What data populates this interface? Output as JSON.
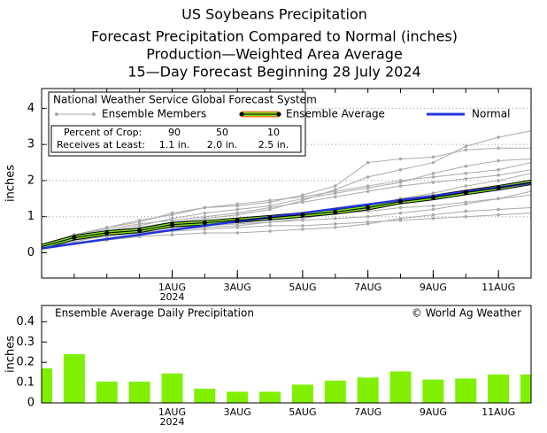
{
  "titles": [
    "US Soybeans Precipitation",
    "Forecast Precipitation Compared to Normal (inches)",
    "Production—Weighted Area Average",
    "15—Day Forecast Beginning 28 July 2024"
  ],
  "chart_data": [
    {
      "type": "line",
      "legend_title": "National Weather Service Global Forecast System",
      "ylabel": "inches",
      "x": [
        0,
        1,
        2,
        3,
        4,
        5,
        6,
        7,
        8,
        9,
        10,
        11,
        12,
        13,
        14,
        15
      ],
      "xlim": [
        0,
        15
      ],
      "xticks": [
        {
          "value": 4,
          "label": "1AUG"
        },
        {
          "value": 6,
          "label": "3AUG"
        },
        {
          "value": 8,
          "label": "5AUG"
        },
        {
          "value": 10,
          "label": "7AUG"
        },
        {
          "value": 12,
          "label": "9AUG"
        },
        {
          "value": 14,
          "label": "11AUG"
        }
      ],
      "xtick_year": "2024",
      "ylim": [
        -0.7,
        4.55
      ],
      "yticks": [
        0,
        1,
        2,
        3,
        4
      ],
      "grid": true,
      "series": [
        {
          "name": "Ensemble Members",
          "color": "#aaaaaa",
          "values": [
            [
              0.2,
              0.35,
              0.55,
              0.7,
              0.85,
              0.95,
              1.05,
              1.2,
              1.45,
              1.75,
              2.1,
              2.3,
              2.5,
              2.95,
              3.2,
              3.38
            ],
            [
              0.2,
              0.45,
              0.7,
              0.9,
              1.05,
              1.25,
              1.3,
              1.4,
              1.6,
              1.85,
              2.5,
              2.6,
              2.65,
              2.85,
              2.9,
              2.9
            ],
            [
              0.15,
              0.3,
              0.5,
              0.6,
              0.7,
              0.8,
              0.9,
              1.0,
              1.05,
              1.1,
              1.15,
              1.25,
              1.3,
              1.4,
              1.5,
              1.6
            ],
            [
              0.2,
              0.4,
              0.5,
              0.55,
              0.6,
              0.65,
              0.7,
              0.75,
              0.75,
              0.8,
              0.85,
              0.9,
              0.95,
              1.0,
              1.05,
              1.1
            ],
            [
              0.2,
              0.5,
              0.7,
              0.85,
              1.1,
              1.25,
              1.35,
              1.45,
              1.55,
              1.7,
              1.85,
              2.0,
              2.1,
              2.2,
              2.3,
              2.5
            ],
            [
              0.15,
              0.35,
              0.45,
              0.55,
              0.65,
              0.7,
              0.75,
              0.85,
              0.95,
              1.1,
              1.3,
              1.5,
              1.65,
              1.85,
              2.0,
              2.2
            ],
            [
              0.2,
              0.4,
              0.5,
              0.6,
              0.7,
              0.75,
              0.8,
              0.85,
              0.9,
              0.95,
              1.0,
              1.1,
              1.2,
              1.35,
              1.5,
              1.7
            ],
            [
              0.2,
              0.45,
              0.6,
              0.75,
              0.95,
              1.1,
              1.2,
              1.3,
              1.5,
              1.65,
              1.8,
              1.95,
              2.2,
              2.4,
              2.55,
              2.6
            ],
            [
              0.15,
              0.25,
              0.35,
              0.45,
              0.5,
              0.55,
              0.55,
              0.6,
              0.65,
              0.7,
              0.8,
              0.95,
              1.05,
              1.15,
              1.2,
              1.25
            ],
            [
              0.2,
              0.5,
              0.65,
              0.8,
              0.9,
              1.0,
              1.1,
              1.25,
              1.4,
              1.55,
              1.7,
              1.85,
              1.95,
              2.05,
              2.15,
              2.3
            ]
          ]
        },
        {
          "name": "Ensemble Average",
          "color": "#7ddc1f",
          "values": [
            0.17,
            0.42,
            0.55,
            0.62,
            0.78,
            0.83,
            0.9,
            0.97,
            1.05,
            1.13,
            1.25,
            1.42,
            1.53,
            1.67,
            1.8,
            1.95
          ]
        },
        {
          "name": "Normal",
          "color": "#2233dd",
          "values": [
            0.12,
            0.25,
            0.38,
            0.5,
            0.63,
            0.75,
            0.87,
            0.98,
            1.1,
            1.22,
            1.34,
            1.46,
            1.57,
            1.69,
            1.81,
            1.93
          ]
        }
      ],
      "percent_table": [
        [
          "Percent of Crop:",
          "90",
          "50",
          "10"
        ],
        [
          "Receives at Least:",
          "1.1 in.",
          "2.0 in.",
          "2.5 in."
        ]
      ]
    },
    {
      "type": "bar",
      "title": "Ensemble Average Daily Precipitation",
      "credit": "© World Ag Weather",
      "ylabel": "inches",
      "x": [
        0,
        1,
        2,
        3,
        4,
        5,
        6,
        7,
        8,
        9,
        10,
        11,
        12,
        13,
        14,
        15
      ],
      "xlim": [
        0,
        15
      ],
      "xticks": [
        {
          "value": 4,
          "label": "1AUG"
        },
        {
          "value": 6,
          "label": "3AUG"
        },
        {
          "value": 8,
          "label": "5AUG"
        },
        {
          "value": 10,
          "label": "7AUG"
        },
        {
          "value": 12,
          "label": "9AUG"
        },
        {
          "value": 14,
          "label": "11AUG"
        }
      ],
      "xtick_year": "2024",
      "values": [
        0.17,
        0.24,
        0.105,
        0.105,
        0.145,
        0.07,
        0.055,
        0.055,
        0.09,
        0.11,
        0.125,
        0.155,
        0.115,
        0.12,
        0.14,
        0.14
      ],
      "color": "#80f000",
      "ylim": [
        0,
        0.48
      ],
      "yticks": [
        0,
        0.1,
        0.2,
        0.3,
        0.4
      ]
    }
  ]
}
